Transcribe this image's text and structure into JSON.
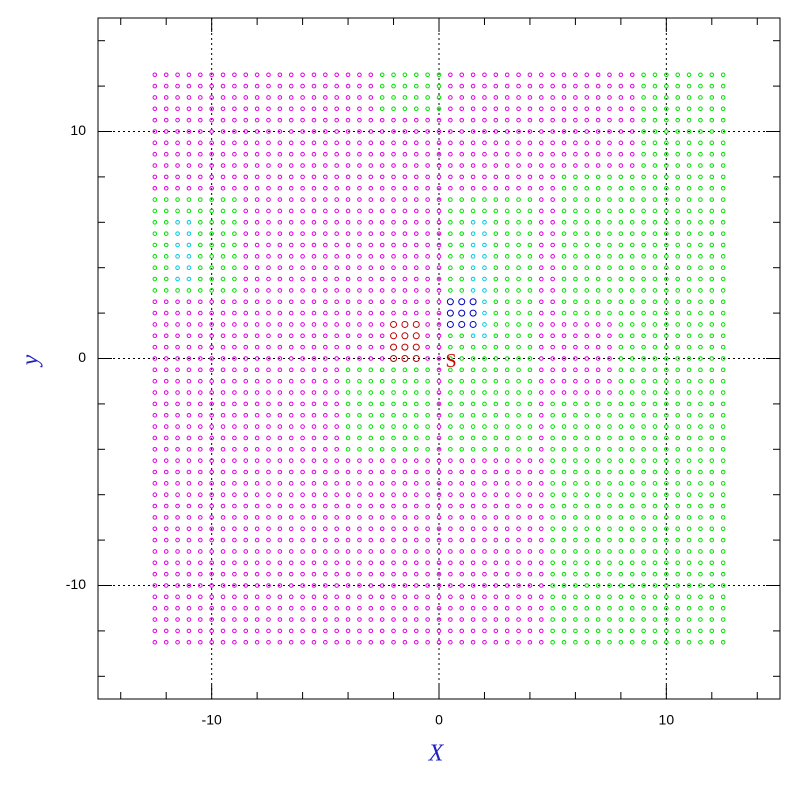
{
  "chart_data": {
    "type": "scatter",
    "x_label": "X",
    "y_label": "y",
    "marker_label": "S",
    "xlim": [
      -15,
      15
    ],
    "ylim": [
      -15,
      15
    ],
    "xticks": [
      -10,
      0,
      10
    ],
    "yticks": [
      -10,
      0,
      10
    ],
    "minor_xticks": [
      -14,
      -12,
      -8,
      -6,
      -4,
      -2,
      2,
      4,
      6,
      8,
      12,
      14
    ],
    "minor_yticks": [
      -14,
      -12,
      -8,
      -6,
      -4,
      -2,
      2,
      4,
      6,
      8,
      12,
      14
    ],
    "grid": true,
    "x": [
      -12.5,
      -12,
      -11.5,
      -11,
      -10.5,
      -10,
      -9.5,
      -9,
      -8.5,
      -8,
      -7.5,
      -7,
      -6.5,
      -6,
      -5.5,
      -5,
      -4.5,
      -4,
      -3.5,
      -3,
      -2.5,
      -2,
      -1.5,
      -1,
      -0.5,
      0,
      0.5,
      1,
      1.5,
      2,
      2.5,
      3,
      3.5,
      4,
      4.5,
      5,
      5.5,
      6,
      6.5,
      7,
      7.5,
      8,
      8.5,
      9,
      9.5,
      10,
      10.5,
      11,
      11.5,
      12,
      12.5
    ],
    "y": [
      -12.5,
      -12,
      -11.5,
      -11,
      -10.5,
      -10,
      -9.5,
      -9,
      -8.5,
      -8,
      -7.5,
      -7,
      -6.5,
      -6,
      -5.5,
      -5,
      -4.5,
      -4,
      -3.5,
      -3,
      -2.5,
      -2,
      -1.5,
      -1,
      -0.5,
      0,
      0.5,
      1,
      1.5,
      2,
      2.5,
      3,
      3.5,
      4,
      4.5,
      5,
      5.5,
      6,
      6.5,
      7,
      7.5,
      8,
      8.5,
      9,
      9.5,
      10,
      10.5,
      11,
      11.5,
      12,
      12.5
    ],
    "color": "#e000e0",
    "regions": [
      {
        "x": [
          9,
          12.5
        ],
        "y": [
          0,
          12.5
        ],
        "color": "#00e000"
      },
      {
        "x": [
          5.5,
          12.5
        ],
        "y": [
          2,
          8
        ],
        "color": "#00e000"
      },
      {
        "x": [
          8,
          12.5
        ],
        "y": [
          -2,
          2
        ],
        "color": "#00e000"
      },
      {
        "x": [
          5,
          12.5
        ],
        "y": [
          -12.5,
          -2
        ],
        "color": "#00e000"
      },
      {
        "x": [
          -2.5,
          0
        ],
        "y": [
          11,
          12.5
        ],
        "color": "#00e000"
      },
      {
        "x": [
          -12.5,
          -9
        ],
        "y": [
          3,
          7
        ],
        "color": "#00e000"
      },
      {
        "x": [
          -11.5,
          -11
        ],
        "y": [
          3.5,
          6
        ],
        "color": "#00c8e0"
      },
      {
        "x": [
          0.5,
          4
        ],
        "y": [
          -4,
          7
        ],
        "color": "#00e000"
      },
      {
        "x": [
          -4,
          -0.5
        ],
        "y": [
          -4,
          -0.5
        ],
        "color": "#00e000"
      },
      {
        "x": [
          1.5,
          2
        ],
        "y": [
          1,
          6
        ],
        "color": "#00c8e0"
      },
      {
        "x": [
          -2,
          -1
        ],
        "y": [
          0,
          1.5
        ],
        "color": "#c00000",
        "size": 3
      },
      {
        "x": [
          0.5,
          1.5
        ],
        "y": [
          1.5,
          2.5
        ],
        "color": "#0000c0",
        "size": 3
      }
    ]
  }
}
